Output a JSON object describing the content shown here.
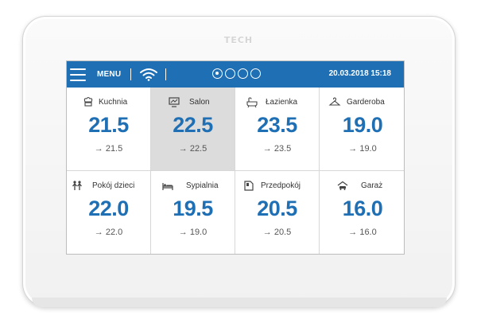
{
  "device": {
    "brand": "TECH"
  },
  "topbar": {
    "menu_label": "MENU",
    "datetime": "20.03.2018 15:18",
    "page_dots": 4,
    "active_page": 1
  },
  "colors": {
    "accent": "#1f6fb5",
    "selected_tile": "#dcdcdc"
  },
  "zones": [
    {
      "name": "Kuchnia",
      "icon": "kitchen-icon",
      "temp": "21.5",
      "setpoint": "→ 21.5",
      "selected": false
    },
    {
      "name": "Salon",
      "icon": "tv-icon",
      "temp": "22.5",
      "setpoint": "→ 22.5",
      "selected": true
    },
    {
      "name": "Łazienka",
      "icon": "bathtub-icon",
      "temp": "23.5",
      "setpoint": "→ 23.5",
      "selected": false
    },
    {
      "name": "Garderoba",
      "icon": "hanger-icon",
      "temp": "19.0",
      "setpoint": "→ 19.0",
      "selected": false
    },
    {
      "name": "Pokój dzieci",
      "icon": "children-icon",
      "temp": "22.0",
      "setpoint": "→ 22.0",
      "selected": false
    },
    {
      "name": "Sypialnia",
      "icon": "bed-icon",
      "temp": "19.5",
      "setpoint": "→ 19.0",
      "selected": false
    },
    {
      "name": "Przedpokój",
      "icon": "hallway-icon",
      "temp": "20.5",
      "setpoint": "→ 20.5",
      "selected": false
    },
    {
      "name": "Garaż",
      "icon": "car-icon",
      "temp": "16.0",
      "setpoint": "→ 16.0",
      "selected": false
    }
  ]
}
